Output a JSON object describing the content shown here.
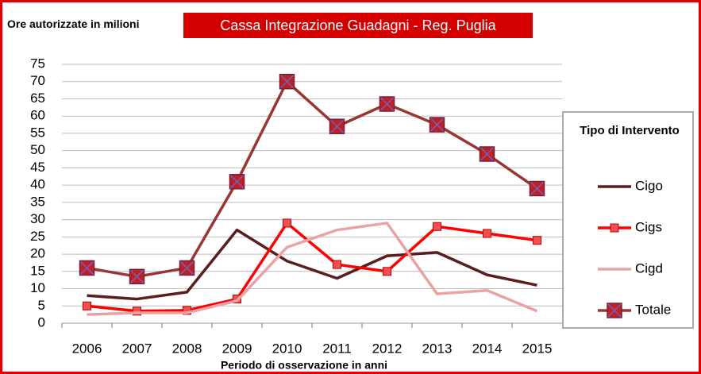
{
  "chart_data": {
    "type": "line",
    "title": "Cassa Integrazione Guadagni - Reg. Puglia",
    "y_label": "Ore autorizzate in milioni",
    "x_label": "Periodo di osservazione in anni",
    "legend_title": "Tipo di Intervento",
    "legend": "right",
    "grid": true,
    "categories": [
      "2006",
      "2007",
      "2008",
      "2009",
      "2010",
      "2011",
      "2012",
      "2013",
      "2014",
      "2015"
    ],
    "ylim": [
      0,
      75
    ],
    "yticks": [
      0,
      5,
      10,
      15,
      20,
      25,
      30,
      35,
      40,
      45,
      50,
      55,
      60,
      65,
      70,
      75
    ],
    "series": [
      {
        "name": "Cigo",
        "color": "#5a1e1e",
        "marker": "none",
        "values": [
          8,
          7,
          9,
          27,
          18,
          13,
          19.5,
          20.5,
          14,
          11
        ]
      },
      {
        "name": "Cigs",
        "color": "#ff0000",
        "marker": "square",
        "values": [
          5,
          3.5,
          3.7,
          7,
          29,
          17,
          15,
          28,
          26,
          24
        ]
      },
      {
        "name": "Cigd",
        "color": "#e9a3a3",
        "marker": "none",
        "values": [
          2.5,
          3,
          3,
          6.5,
          22,
          27,
          29,
          8.5,
          9.5,
          3.5
        ]
      },
      {
        "name": "Totale",
        "color": "#9b3535",
        "marker": "square-x",
        "values": [
          16,
          13.5,
          16,
          41,
          70,
          57,
          63.5,
          57.5,
          49,
          39
        ]
      }
    ]
  }
}
